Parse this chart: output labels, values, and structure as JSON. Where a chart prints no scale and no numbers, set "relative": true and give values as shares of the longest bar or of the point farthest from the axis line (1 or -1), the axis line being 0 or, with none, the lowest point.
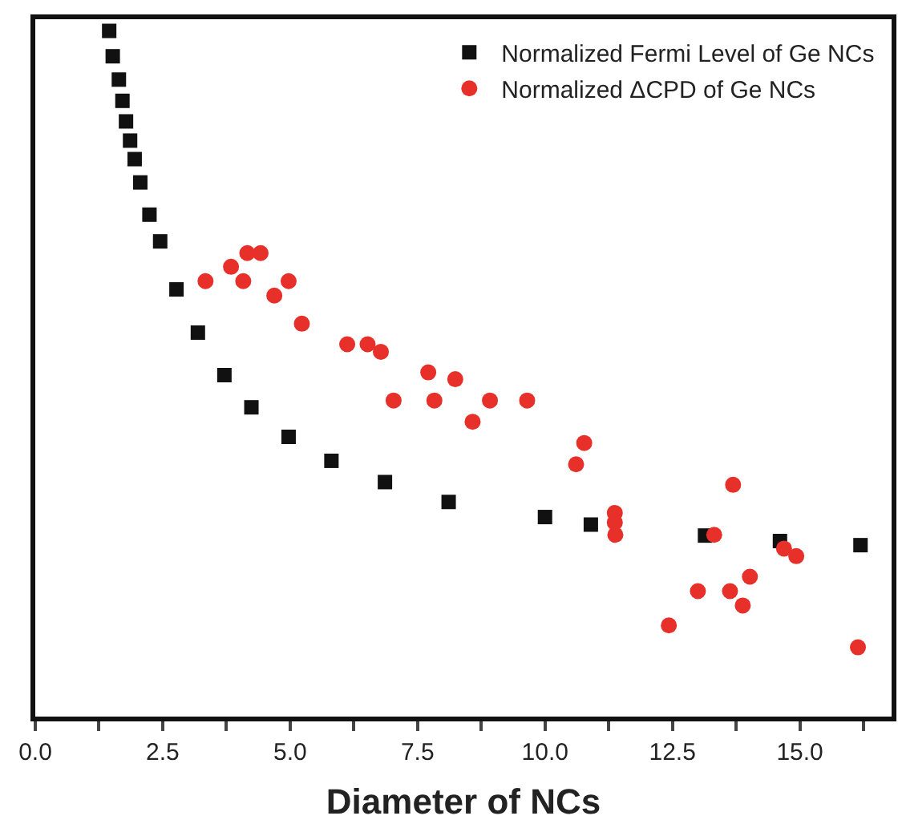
{
  "chart_data": {
    "type": "scatter",
    "xlabel": "Diameter of NCs",
    "relative": true,
    "tick_labels": "x",
    "grid": false,
    "legend": "top right",
    "xlim": [
      0,
      16.8
    ],
    "xticks": [
      {
        "value": 0,
        "label": "0.0"
      },
      {
        "value": 1.25,
        "label": null
      },
      {
        "value": 2.5,
        "label": "2.5"
      },
      {
        "value": 3.75,
        "label": null
      },
      {
        "value": 5,
        "label": "5.0"
      },
      {
        "value": 6.25,
        "label": null
      },
      {
        "value": 7.5,
        "label": "7.5"
      },
      {
        "value": 8.75,
        "label": null
      },
      {
        "value": 10,
        "label": "10.0"
      },
      {
        "value": 11.25,
        "label": null
      },
      {
        "value": 12.5,
        "label": "12.5"
      },
      {
        "value": 13.75,
        "label": null
      },
      {
        "value": 15,
        "label": "15.0"
      },
      {
        "value": 16.25,
        "label": null
      }
    ],
    "series": [
      {
        "name": "Normalized Fermi Level of Ge NCs",
        "color": "#111111",
        "marker": "square",
        "x": [
          1.45,
          1.52,
          1.64,
          1.71,
          1.78,
          1.86,
          1.95,
          2.06,
          2.24,
          2.45,
          2.77,
          3.19,
          3.71,
          4.24,
          4.97,
          5.81,
          6.86,
          8.11,
          10.0,
          10.9,
          13.14,
          14.61,
          16.19
        ],
        "values": [
          1.0,
          0.963,
          0.929,
          0.898,
          0.868,
          0.84,
          0.813,
          0.779,
          0.732,
          0.693,
          0.623,
          0.56,
          0.498,
          0.451,
          0.408,
          0.373,
          0.342,
          0.313,
          0.291,
          0.28,
          0.264,
          0.256,
          0.25
        ]
      },
      {
        "name": "Normalized ΔCPD of Ge NCs",
        "color": "#e8302a",
        "marker": "circle",
        "x": [
          3.34,
          3.84,
          4.08,
          4.16,
          4.42,
          4.69,
          4.97,
          5.23,
          6.12,
          6.52,
          6.78,
          7.03,
          7.71,
          7.83,
          8.24,
          8.58,
          8.92,
          9.65,
          10.61,
          10.77,
          11.37,
          11.37,
          11.38,
          12.43,
          13.0,
          13.32,
          13.63,
          13.69,
          13.88,
          14.02,
          14.69,
          14.93,
          16.14
        ],
        "values": [
          0.635,
          0.656,
          0.635,
          0.676,
          0.676,
          0.614,
          0.635,
          0.573,
          0.543,
          0.543,
          0.532,
          0.461,
          0.502,
          0.461,
          0.492,
          0.43,
          0.461,
          0.461,
          0.368,
          0.399,
          0.297,
          0.283,
          0.265,
          0.133,
          0.183,
          0.265,
          0.183,
          0.338,
          0.162,
          0.204,
          0.245,
          0.234,
          0.101
        ]
      }
    ]
  }
}
